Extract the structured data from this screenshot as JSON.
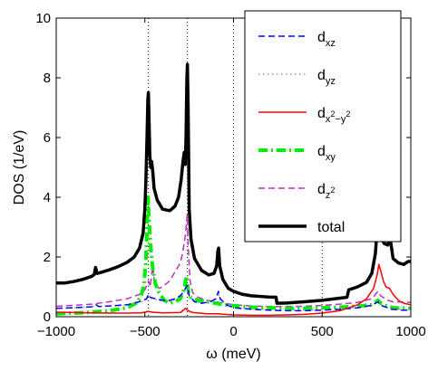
{
  "chart_data": {
    "type": "line",
    "xlabel": "ω (meV)",
    "ylabel": "DOS (1/eV)",
    "xlim": [
      -1000,
      1000
    ],
    "ylim": [
      0,
      10
    ],
    "xticks": [
      -1000,
      -500,
      0,
      500,
      1000
    ],
    "yticks": [
      0,
      2,
      4,
      6,
      8,
      10
    ],
    "x_tick_labels": [
      "−1000",
      "−500",
      "0",
      "500",
      "1000"
    ],
    "y_tick_labels": [
      "0",
      "2",
      "4",
      "6",
      "8",
      "10"
    ],
    "reference_lines_x": [
      -480,
      -260,
      0,
      500,
      1000
    ],
    "grid": false,
    "legend_position": "top-right",
    "series": [
      {
        "name": "d_xz",
        "legend_label": {
          "base": "d",
          "sub": "xz"
        },
        "color": "#0000ff",
        "style": "dashed",
        "points": [
          [
            -1000,
            0.28
          ],
          [
            -900,
            0.3
          ],
          [
            -800,
            0.33
          ],
          [
            -775,
            0.4
          ],
          [
            -760,
            0.34
          ],
          [
            -700,
            0.36
          ],
          [
            -600,
            0.4
          ],
          [
            -520,
            0.52
          ],
          [
            -490,
            0.6
          ],
          [
            -480,
            0.75
          ],
          [
            -470,
            0.65
          ],
          [
            -440,
            0.6
          ],
          [
            -400,
            0.55
          ],
          [
            -360,
            0.55
          ],
          [
            -330,
            0.6
          ],
          [
            -300,
            0.7
          ],
          [
            -280,
            0.85
          ],
          [
            -262,
            1.05
          ],
          [
            -250,
            0.7
          ],
          [
            -220,
            0.5
          ],
          [
            -180,
            0.45
          ],
          [
            -130,
            0.5
          ],
          [
            -100,
            0.6
          ],
          [
            -85,
            0.85
          ],
          [
            -75,
            0.6
          ],
          [
            -40,
            0.4
          ],
          [
            0,
            0.3
          ],
          [
            100,
            0.25
          ],
          [
            200,
            0.22
          ],
          [
            300,
            0.2
          ],
          [
            400,
            0.2
          ],
          [
            500,
            0.22
          ],
          [
            600,
            0.25
          ],
          [
            700,
            0.3
          ],
          [
            780,
            0.38
          ],
          [
            815,
            0.5
          ],
          [
            830,
            0.38
          ],
          [
            870,
            0.3
          ],
          [
            890,
            0.25
          ],
          [
            950,
            0.22
          ],
          [
            1000,
            0.22
          ]
        ]
      },
      {
        "name": "d_yz",
        "legend_label": {
          "base": "d",
          "sub": "yz"
        },
        "color": "#999999",
        "style": "dotted",
        "points": [
          [
            -1000,
            0.28
          ],
          [
            -900,
            0.3
          ],
          [
            -800,
            0.33
          ],
          [
            -775,
            0.38
          ],
          [
            -760,
            0.34
          ],
          [
            -700,
            0.36
          ],
          [
            -600,
            0.4
          ],
          [
            -520,
            0.5
          ],
          [
            -490,
            0.58
          ],
          [
            -480,
            0.7
          ],
          [
            -470,
            0.62
          ],
          [
            -440,
            0.58
          ],
          [
            -400,
            0.52
          ],
          [
            -360,
            0.52
          ],
          [
            -330,
            0.58
          ],
          [
            -300,
            0.66
          ],
          [
            -280,
            0.8
          ],
          [
            -262,
            1.0
          ],
          [
            -250,
            0.68
          ],
          [
            -220,
            0.5
          ],
          [
            -180,
            0.45
          ],
          [
            -130,
            0.5
          ],
          [
            -100,
            0.58
          ],
          [
            -85,
            0.8
          ],
          [
            -75,
            0.58
          ],
          [
            -40,
            0.4
          ],
          [
            0,
            0.3
          ],
          [
            100,
            0.26
          ],
          [
            200,
            0.24
          ],
          [
            300,
            0.22
          ],
          [
            400,
            0.22
          ],
          [
            500,
            0.24
          ],
          [
            600,
            0.27
          ],
          [
            700,
            0.32
          ],
          [
            780,
            0.4
          ],
          [
            815,
            0.52
          ],
          [
            830,
            0.4
          ],
          [
            870,
            0.32
          ],
          [
            890,
            0.27
          ],
          [
            950,
            0.24
          ],
          [
            1000,
            0.24
          ]
        ]
      },
      {
        "name": "d_x2-y2",
        "legend_label": {
          "base": "d",
          "sub": "x",
          "sup": "2",
          "mid": "−y",
          "sup2": "2"
        },
        "color": "#ff0000",
        "style": "solid",
        "points": [
          [
            -1000,
            0.15
          ],
          [
            -900,
            0.14
          ],
          [
            -800,
            0.13
          ],
          [
            -700,
            0.12
          ],
          [
            -600,
            0.12
          ],
          [
            -520,
            0.13
          ],
          [
            -480,
            0.18
          ],
          [
            -460,
            0.15
          ],
          [
            -400,
            0.13
          ],
          [
            -300,
            0.14
          ],
          [
            -270,
            0.28
          ],
          [
            -255,
            0.2
          ],
          [
            -230,
            0.14
          ],
          [
            -150,
            0.1
          ],
          [
            -90,
            0.1
          ],
          [
            -50,
            0.08
          ],
          [
            0,
            0.06
          ],
          [
            100,
            0.05
          ],
          [
            200,
            0.05
          ],
          [
            300,
            0.06
          ],
          [
            400,
            0.08
          ],
          [
            500,
            0.12
          ],
          [
            600,
            0.2
          ],
          [
            650,
            0.3
          ],
          [
            700,
            0.4
          ],
          [
            750,
            0.6
          ],
          [
            790,
            0.95
          ],
          [
            810,
            1.4
          ],
          [
            820,
            1.75
          ],
          [
            830,
            1.55
          ],
          [
            845,
            1.2
          ],
          [
            860,
            1.0
          ],
          [
            880,
            0.95
          ],
          [
            900,
            0.75
          ],
          [
            930,
            0.55
          ],
          [
            960,
            0.45
          ],
          [
            1000,
            0.4
          ]
        ]
      },
      {
        "name": "d_xy",
        "legend_label": {
          "base": "d",
          "sub": "xy"
        },
        "color": "#00ee00",
        "style": "dashdot",
        "points": [
          [
            -1000,
            0.1
          ],
          [
            -900,
            0.12
          ],
          [
            -800,
            0.15
          ],
          [
            -700,
            0.2
          ],
          [
            -600,
            0.3
          ],
          [
            -550,
            0.45
          ],
          [
            -520,
            0.7
          ],
          [
            -505,
            1.1
          ],
          [
            -495,
            1.8
          ],
          [
            -488,
            3.0
          ],
          [
            -482,
            4.0
          ],
          [
            -476,
            3.2
          ],
          [
            -468,
            2.4
          ],
          [
            -455,
            1.6
          ],
          [
            -440,
            1.1
          ],
          [
            -420,
            0.8
          ],
          [
            -390,
            0.55
          ],
          [
            -360,
            0.45
          ],
          [
            -330,
            0.5
          ],
          [
            -300,
            0.6
          ],
          [
            -280,
            0.9
          ],
          [
            -265,
            1.35
          ],
          [
            -255,
            0.85
          ],
          [
            -240,
            0.65
          ],
          [
            -200,
            0.55
          ],
          [
            -150,
            0.5
          ],
          [
            -100,
            0.45
          ],
          [
            -50,
            0.4
          ],
          [
            0,
            0.37
          ],
          [
            100,
            0.32
          ],
          [
            200,
            0.3
          ],
          [
            300,
            0.28
          ],
          [
            400,
            0.28
          ],
          [
            500,
            0.3
          ],
          [
            600,
            0.32
          ],
          [
            700,
            0.35
          ],
          [
            780,
            0.4
          ],
          [
            815,
            0.55
          ],
          [
            830,
            0.45
          ],
          [
            870,
            0.35
          ],
          [
            900,
            0.3
          ],
          [
            1000,
            0.28
          ]
        ]
      },
      {
        "name": "d_z2",
        "legend_label": {
          "base": "d",
          "sub": "z",
          "subsup": "2"
        },
        "color": "#c030c0",
        "style": "dashed",
        "points": [
          [
            -1000,
            0.35
          ],
          [
            -900,
            0.38
          ],
          [
            -800,
            0.42
          ],
          [
            -700,
            0.5
          ],
          [
            -600,
            0.6
          ],
          [
            -530,
            0.75
          ],
          [
            -500,
            0.9
          ],
          [
            -480,
            1.2
          ],
          [
            -470,
            1.0
          ],
          [
            -455,
            1.7
          ],
          [
            -445,
            1.1
          ],
          [
            -420,
            0.95
          ],
          [
            -400,
            1.0
          ],
          [
            -360,
            1.2
          ],
          [
            -330,
            1.5
          ],
          [
            -300,
            1.8
          ],
          [
            -285,
            2.2
          ],
          [
            -270,
            2.8
          ],
          [
            -262,
            3.4
          ],
          [
            -255,
            2.3
          ],
          [
            -245,
            1.2
          ],
          [
            -230,
            0.8
          ],
          [
            -200,
            0.65
          ],
          [
            -150,
            0.55
          ],
          [
            -100,
            0.5
          ],
          [
            -50,
            0.45
          ],
          [
            0,
            0.4
          ],
          [
            100,
            0.36
          ],
          [
            200,
            0.34
          ],
          [
            300,
            0.34
          ],
          [
            400,
            0.35
          ],
          [
            500,
            0.38
          ],
          [
            600,
            0.42
          ],
          [
            700,
            0.48
          ],
          [
            780,
            0.6
          ],
          [
            815,
            0.85
          ],
          [
            830,
            0.7
          ],
          [
            870,
            0.55
          ],
          [
            900,
            0.5
          ],
          [
            1000,
            0.48
          ]
        ]
      },
      {
        "name": "total",
        "legend_label": {
          "base": "total"
        },
        "color": "#000000",
        "style": "solid-thick",
        "points": [
          [
            -1000,
            1.13
          ],
          [
            -950,
            1.13
          ],
          [
            -900,
            1.18
          ],
          [
            -850,
            1.25
          ],
          [
            -800,
            1.35
          ],
          [
            -785,
            1.42
          ],
          [
            -778,
            1.65
          ],
          [
            -770,
            1.45
          ],
          [
            -750,
            1.48
          ],
          [
            -700,
            1.57
          ],
          [
            -650,
            1.68
          ],
          [
            -600,
            1.82
          ],
          [
            -560,
            2.0
          ],
          [
            -530,
            2.3
          ],
          [
            -510,
            2.8
          ],
          [
            -500,
            3.6
          ],
          [
            -494,
            4.6
          ],
          [
            -488,
            6.0
          ],
          [
            -483,
            7.3
          ],
          [
            -480,
            7.5
          ],
          [
            -476,
            6.5
          ],
          [
            -472,
            5.4
          ],
          [
            -467,
            5.0
          ],
          [
            -462,
            5.2
          ],
          [
            -456,
            4.9
          ],
          [
            -448,
            4.3
          ],
          [
            -430,
            3.9
          ],
          [
            -400,
            3.6
          ],
          [
            -360,
            3.55
          ],
          [
            -330,
            3.7
          ],
          [
            -310,
            4.0
          ],
          [
            -295,
            4.6
          ],
          [
            -285,
            5.2
          ],
          [
            -278,
            5.5
          ],
          [
            -272,
            5.1
          ],
          [
            -268,
            6.0
          ],
          [
            -263,
            8.0
          ],
          [
            -260,
            8.45
          ],
          [
            -256,
            7.0
          ],
          [
            -250,
            3.6
          ],
          [
            -240,
            2.6
          ],
          [
            -220,
            1.95
          ],
          [
            -180,
            1.55
          ],
          [
            -140,
            1.4
          ],
          [
            -110,
            1.45
          ],
          [
            -95,
            1.7
          ],
          [
            -88,
            2.2
          ],
          [
            -84,
            2.3
          ],
          [
            -78,
            1.7
          ],
          [
            -60,
            1.25
          ],
          [
            -30,
            0.95
          ],
          [
            0,
            0.85
          ],
          [
            50,
            0.75
          ],
          [
            100,
            0.7
          ],
          [
            150,
            0.68
          ],
          [
            200,
            0.66
          ],
          [
            240,
            0.65
          ],
          [
            245,
            0.45
          ],
          [
            300,
            0.46
          ],
          [
            400,
            0.5
          ],
          [
            500,
            0.55
          ],
          [
            600,
            0.62
          ],
          [
            640,
            0.65
          ],
          [
            650,
            0.9
          ],
          [
            700,
            1.0
          ],
          [
            750,
            1.15
          ],
          [
            780,
            1.45
          ],
          [
            800,
            2.1
          ],
          [
            810,
            2.9
          ],
          [
            818,
            3.35
          ],
          [
            825,
            3.0
          ],
          [
            835,
            2.6
          ],
          [
            850,
            2.45
          ],
          [
            870,
            2.4
          ],
          [
            880,
            2.6
          ],
          [
            888,
            2.45
          ],
          [
            900,
            1.95
          ],
          [
            930,
            1.8
          ],
          [
            960,
            1.75
          ],
          [
            985,
            1.85
          ],
          [
            1000,
            1.85
          ]
        ]
      }
    ]
  }
}
